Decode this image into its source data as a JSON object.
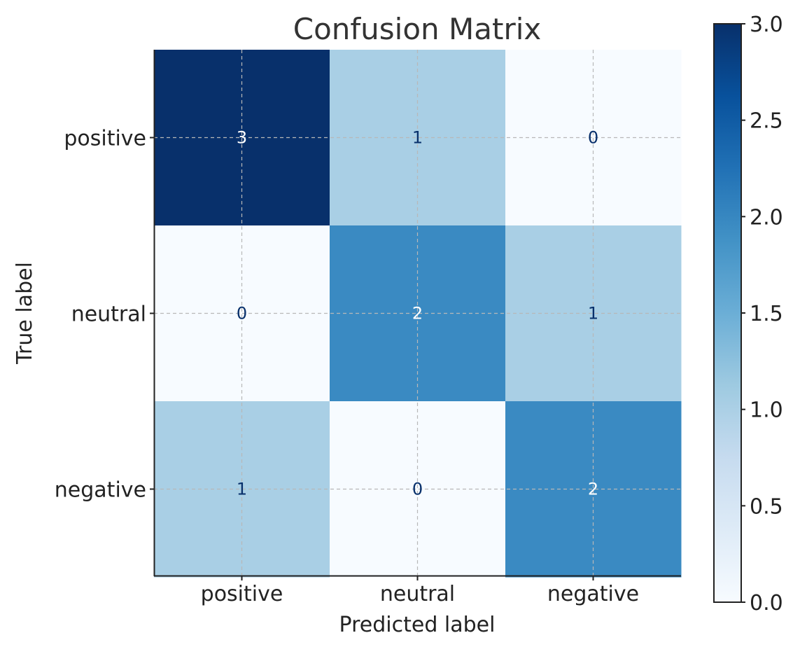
{
  "chart_data": {
    "type": "heatmap",
    "title": "Confusion Matrix",
    "xlabel": "Predicted label",
    "ylabel": "True label",
    "x_categories": [
      "positive",
      "neutral",
      "negative"
    ],
    "y_categories": [
      "positive",
      "neutral",
      "negative"
    ],
    "values": [
      [
        3,
        1,
        0
      ],
      [
        0,
        2,
        1
      ],
      [
        1,
        0,
        2
      ]
    ],
    "colormap": "Blues",
    "colorbar": {
      "range": [
        0.0,
        3.0
      ],
      "ticks": [
        "0.0",
        "0.5",
        "1.0",
        "1.5",
        "2.0",
        "2.5",
        "3.0"
      ]
    },
    "grid": true
  }
}
